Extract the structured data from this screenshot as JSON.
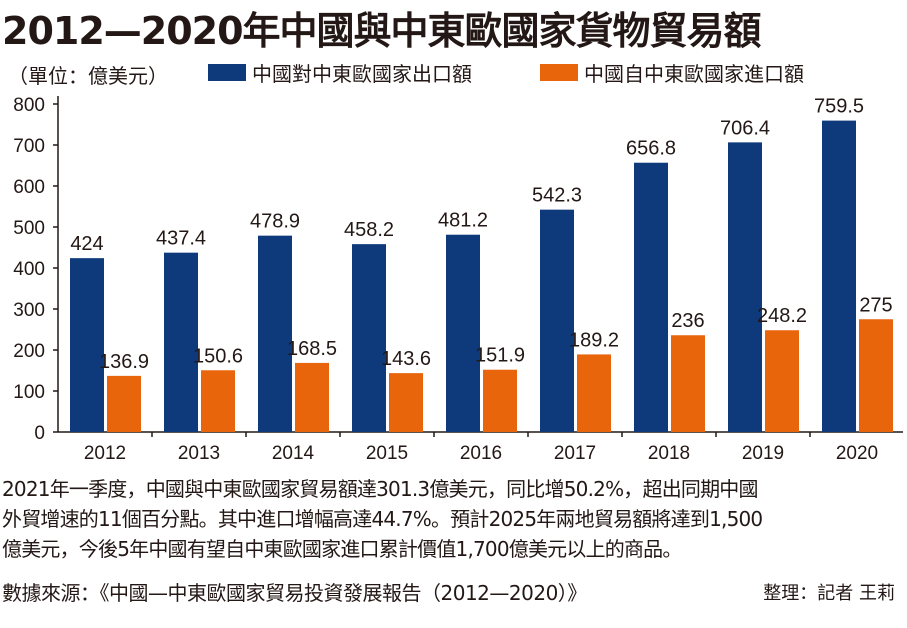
{
  "title": "2012—2020年中國與中東歐國家貨物貿易額",
  "unit_label": "（單位：億美元）",
  "colors": {
    "export": "#0e3a7c",
    "import": "#e8650c"
  },
  "chart_data": {
    "type": "bar",
    "title": "2012—2020年中國與中東歐國家貨物貿易額",
    "ylabel": "（單位：億美元）",
    "categories": [
      "2012",
      "2013",
      "2014",
      "2015",
      "2016",
      "2017",
      "2018",
      "2019",
      "2020"
    ],
    "series": [
      {
        "name": "中國對中東歐國家出口額",
        "values": [
          424,
          437.4,
          478.9,
          458.2,
          481.2,
          542.3,
          656.8,
          706.4,
          759.5
        ],
        "labels": [
          "424",
          "437.4",
          "478.9",
          "458.2",
          "481.2",
          "542.3",
          "656.8",
          "706.4",
          "759.5"
        ]
      },
      {
        "name": "中國自中東歐國家進口額",
        "values": [
          136.9,
          150.6,
          168.5,
          143.6,
          151.9,
          189.2,
          236,
          248.2,
          275
        ],
        "labels": [
          "136.9",
          "150.6",
          "168.5",
          "143.6",
          "151.9",
          "189.2",
          "236",
          "248.2",
          "275"
        ]
      }
    ],
    "ylim": [
      0,
      800
    ],
    "yticks": [
      "0",
      "100",
      "200",
      "300",
      "400",
      "500",
      "600",
      "700",
      "800"
    ],
    "grid": false,
    "legend_position": "top"
  },
  "paragraph": [
    "2021年一季度，中國與中東歐國家貿易額達301.3億美元，同比增50.2%，超出同期中國",
    "外貿增速的11個百分點。其中進口增幅高達44.7%。預計2025年兩地貿易額將達到1,500",
    "億美元，今後5年中國有望自中東歐國家進口累計價值1,700億美元以上的商品。"
  ],
  "source": "數據來源：《中國—中東歐國家貿易投資發展報告（2012—2020）》",
  "editor": "整理：記者 王莉"
}
